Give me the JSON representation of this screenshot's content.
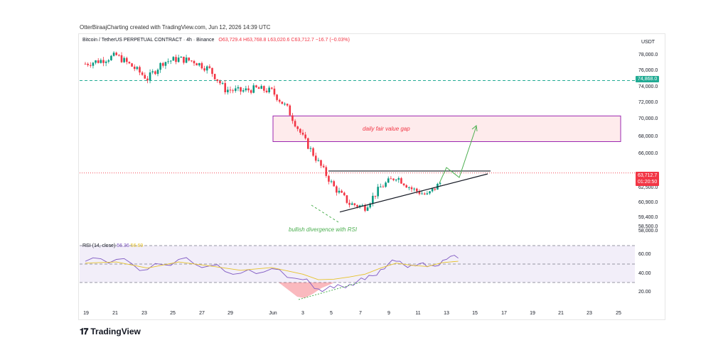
{
  "caption": "OtterBiraajCharting created with TradingView.com, Jun 12, 2026 14:39 UTC",
  "symbol": {
    "name": "Bitcoin / TetherUS PERPETUAL CONTRACT · 4h · Binance",
    "open": "O63,729.4",
    "high": "H63,768.8",
    "low": "L63,020.6",
    "close": "C63,712.7",
    "change": "−16.7 (−0.03%)"
  },
  "currency": "USDT",
  "price_ticks": [
    "78,000.0",
    "76,000.0",
    "74,000.0",
    "72,000.0",
    "70,000.0",
    "68,000.0",
    "66,000.0",
    "62,500.0",
    "60,900.0",
    "59,400.0",
    "58,500.0",
    "58,000.0"
  ],
  "badges": {
    "level": "74,868.0",
    "last_price": "63,712.7",
    "countdown": "01:20:50"
  },
  "annotations": {
    "fvg": "daily fair value gap",
    "divergence": "bullish divergence with RSI"
  },
  "rsi": {
    "label": "RSI (14, close)",
    "value": "56.36",
    "ma_value": "56.69",
    "ticks": [
      "60.00",
      "40.00",
      "20.00"
    ]
  },
  "time_ticks": [
    "19",
    "21",
    "23",
    "25",
    "27",
    "29",
    "Jun",
    "3",
    "5",
    "7",
    "9",
    "11",
    "13",
    "15",
    "17",
    "19",
    "21",
    "23",
    "25"
  ],
  "logo": "TradingView",
  "colors": {
    "up": "#089981",
    "down": "#f23645",
    "rsi": "#7e57c2",
    "rsi_ma": "#e6c229",
    "fvg": "#f23645",
    "arrow": "#4caf50"
  },
  "chart_data": {
    "type": "candlestick",
    "interval": "4h",
    "close_series": [
      {
        "date": "May 19",
        "value": 76900
      },
      {
        "date": "May 20",
        "value": 77300
      },
      {
        "date": "May 21",
        "value": 77900
      },
      {
        "date": "May 22",
        "value": 76600
      },
      {
        "date": "May 23",
        "value": 75100
      },
      {
        "date": "May 24",
        "value": 77100
      },
      {
        "date": "May 25",
        "value": 77500
      },
      {
        "date": "May 26",
        "value": 77200
      },
      {
        "date": "May 27",
        "value": 76200
      },
      {
        "date": "May 28",
        "value": 73800
      },
      {
        "date": "May 29",
        "value": 73600
      },
      {
        "date": "May 30",
        "value": 73900
      },
      {
        "date": "May 31",
        "value": 73600
      },
      {
        "date": "Jun 1",
        "value": 71500
      },
      {
        "date": "Jun 2",
        "value": 68000
      },
      {
        "date": "Jun 3",
        "value": 65000
      },
      {
        "date": "Jun 4",
        "value": 62000
      },
      {
        "date": "Jun 5",
        "value": 60000
      },
      {
        "date": "Jun 6",
        "value": 59600
      },
      {
        "date": "Jun 7",
        "value": 62000
      },
      {
        "date": "Jun 8",
        "value": 63300
      },
      {
        "date": "Jun 9",
        "value": 61800
      },
      {
        "date": "Jun 10",
        "value": 61000
      },
      {
        "date": "Jun 11",
        "value": 62800
      },
      {
        "date": "Jun 12",
        "value": 63712.7
      }
    ],
    "levels": {
      "horizontal_dashed": 74868.0,
      "resistance": 63950,
      "fair_value_gap": [
        67500,
        70600
      ]
    },
    "rsi_series": [
      {
        "date": "May 19",
        "value": 53
      },
      {
        "date": "May 21",
        "value": 55
      },
      {
        "date": "May 23",
        "value": 44
      },
      {
        "date": "May 25",
        "value": 55
      },
      {
        "date": "May 27",
        "value": 48
      },
      {
        "date": "May 29",
        "value": 40
      },
      {
        "date": "May 31",
        "value": 45
      },
      {
        "date": "Jun 2",
        "value": 33
      },
      {
        "date": "Jun 3",
        "value": 23
      },
      {
        "date": "Jun 4",
        "value": 24
      },
      {
        "date": "Jun 5",
        "value": 28
      },
      {
        "date": "Jun 6",
        "value": 33
      },
      {
        "date": "Jun 7",
        "value": 44
      },
      {
        "date": "Jun 8",
        "value": 53
      },
      {
        "date": "Jun 9",
        "value": 49
      },
      {
        "date": "Jun 10",
        "value": 47
      },
      {
        "date": "Jun 11",
        "value": 54
      },
      {
        "date": "Jun 12",
        "value": 56.36
      }
    ],
    "rsi_band": [
      30,
      70
    ]
  }
}
